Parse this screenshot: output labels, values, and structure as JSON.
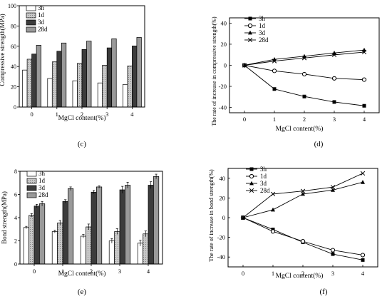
{
  "chart_data": [
    {
      "type": "bar",
      "panel_label": "(c)",
      "xlabel": "MgCl content(%)",
      "ylabel": "Compressive strength(MPa)",
      "categories": [
        "0",
        "1",
        "2",
        "3",
        "4"
      ],
      "ylim": [
        0,
        100
      ],
      "yticks": [
        "0",
        "20",
        "40",
        "60",
        "80",
        "100"
      ],
      "legend_position": "top-left",
      "series": [
        {
          "name": "3h",
          "values": [
            36.5,
            28.2,
            25.9,
            23.8,
            22.3
          ]
        },
        {
          "name": "1d",
          "values": [
            47.2,
            44.6,
            43.2,
            41.3,
            40.6
          ]
        },
        {
          "name": "3d",
          "values": [
            52.3,
            55.1,
            56.8,
            58.4,
            60.3
          ]
        },
        {
          "name": "28d",
          "values": [
            61.0,
            63.2,
            65.1,
            67.4,
            68.7
          ]
        }
      ]
    },
    {
      "type": "line",
      "panel_label": "(d)",
      "xlabel": "MgCl content(%)",
      "ylabel": "The rate of increase in compressive strength(%)",
      "x": [
        0,
        1,
        2,
        3,
        4
      ],
      "xlim": [
        -0.5,
        4.5
      ],
      "ylim": [
        -45,
        45
      ],
      "yticks": [
        "-40",
        "-20",
        "0",
        "20",
        "40"
      ],
      "legend_position": "top-left",
      "series": [
        {
          "name": "3h",
          "marker": "square",
          "values": [
            0,
            -22.5,
            -29.6,
            -34.8,
            -38.4
          ]
        },
        {
          "name": "1d",
          "marker": "circle",
          "values": [
            0,
            -5.3,
            -8.4,
            -12.4,
            -13.6
          ]
        },
        {
          "name": "3d",
          "marker": "triangle",
          "values": [
            0,
            5.6,
            8.6,
            11.7,
            14.5
          ]
        },
        {
          "name": "28d",
          "marker": "cross",
          "values": [
            0,
            4.0,
            6.9,
            9.9,
            12.5
          ]
        }
      ]
    },
    {
      "type": "bar",
      "panel_label": "(e)",
      "xlabel": "MgCl content(%)",
      "ylabel": "Bond strength(MPa)",
      "categories": [
        "0",
        "1",
        "2",
        "3",
        "4"
      ],
      "ylim": [
        0,
        8
      ],
      "yticks": [
        "0",
        "2",
        "4",
        "6",
        "8"
      ],
      "legend_position": "top-left",
      "series": [
        {
          "name": "3h",
          "values": [
            3.15,
            2.8,
            2.4,
            2.0,
            1.8
          ],
          "errors": [
            0.1,
            0.12,
            0.15,
            0.2,
            0.25
          ]
        },
        {
          "name": "1d",
          "values": [
            4.2,
            3.55,
            3.2,
            2.8,
            2.6
          ],
          "errors": [
            0.15,
            0.2,
            0.25,
            0.25,
            0.25
          ]
        },
        {
          "name": "3d",
          "values": [
            5.0,
            5.4,
            6.2,
            6.4,
            6.8
          ],
          "errors": [
            0.15,
            0.15,
            0.15,
            0.3,
            0.3
          ]
        },
        {
          "name": "28d",
          "values": [
            5.2,
            6.5,
            6.65,
            6.8,
            7.55
          ],
          "errors": [
            0.2,
            0.15,
            0.1,
            0.25,
            0.2
          ]
        }
      ]
    },
    {
      "type": "line",
      "panel_label": "(f)",
      "xlabel": "MgCl content(%)",
      "ylabel": "The rate of increase in bond strength(%)",
      "x": [
        0,
        1,
        2,
        3,
        4
      ],
      "xlim": [
        -0.5,
        4.5
      ],
      "ylim": [
        -50,
        50
      ],
      "yticks": [
        "-40",
        "-20",
        "0",
        "20",
        "40"
      ],
      "legend_position": "top-left",
      "series": [
        {
          "name": "3h",
          "marker": "square",
          "values": [
            0,
            -12,
            -25,
            -37,
            -43
          ]
        },
        {
          "name": "1d",
          "marker": "circle",
          "values": [
            0,
            -14,
            -24,
            -33,
            -38
          ]
        },
        {
          "name": "3d",
          "marker": "triangle",
          "values": [
            0,
            8,
            24,
            28,
            36
          ]
        },
        {
          "name": "28d",
          "marker": "cross",
          "values": [
            0,
            24,
            27,
            31,
            45
          ]
        }
      ]
    }
  ]
}
